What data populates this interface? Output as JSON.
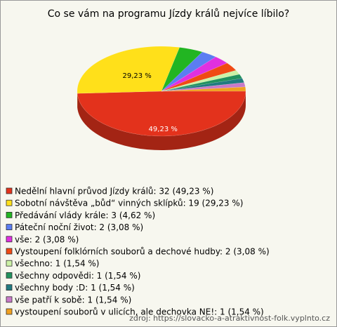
{
  "chart_data": {
    "type": "pie",
    "title": "Co se vám na programu Jízdy králů nejvíce líbilo?",
    "categories": [
      "Nedělní hlavní průvod Jízdy králů: 32 (49,23 %)",
      "Sobotní návštěva „bůd“ vinných sklípků: 19 (29,23 %)",
      "Předávání vlády krále: 3 (4,62 %)",
      "Páteční noční život: 2 (3,08 %)",
      "vše: 2 (3,08 %)",
      "Vystoupení folklórních souborů a dechové hudby: 2 (3,08 %)",
      "všechno: 1 (1,54 %)",
      "všechny odpovědi: 1 (1,54 %)",
      "všechny body :D: 1 (1,54 %)",
      "vše patří k sobě: 1 (1,54 %)",
      "vystoupení souborů v ulicích, ale dechovka NE!: 1 (1,54 %)"
    ],
    "values": [
      49.23,
      29.23,
      4.62,
      3.08,
      3.08,
      3.08,
      1.54,
      1.54,
      1.54,
      1.54,
      1.54
    ],
    "value_labels": [
      "49,23 %",
      "29,23 %",
      null,
      null,
      null,
      null,
      null,
      null,
      null,
      null,
      null
    ],
    "colors": [
      "#e3321c",
      "#ffe01a",
      "#22b522",
      "#5b7df2",
      "#e030e0",
      "#f04a14",
      "#ccf2a6",
      "#22925e",
      "#217a80",
      "#c87ac8",
      "#f0a020"
    ],
    "source": "zdroj: https://slovacko-a-atraktivnost-folk.vyplnto.cz"
  }
}
